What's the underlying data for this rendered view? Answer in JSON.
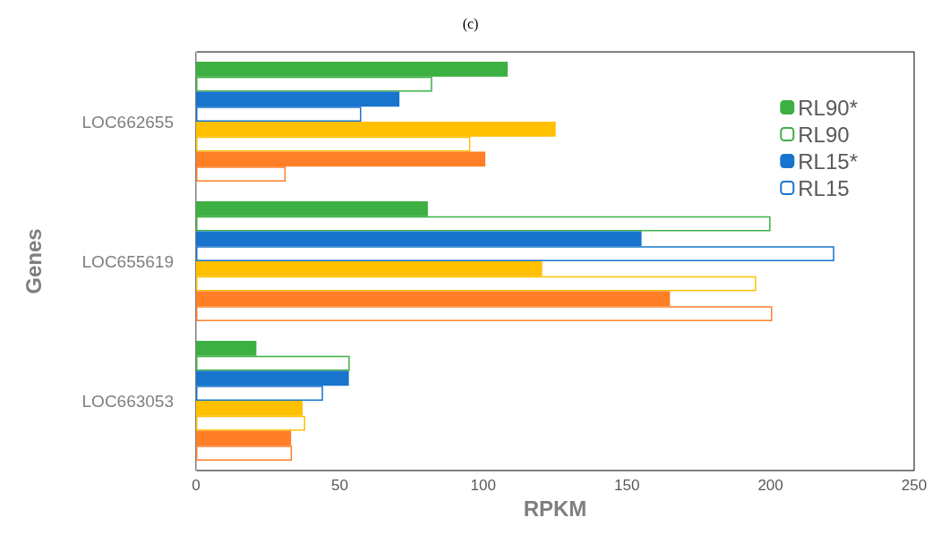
{
  "chart_data": {
    "type": "bar",
    "orientation": "horizontal",
    "title": "(c)",
    "xlabel": "RPKM",
    "ylabel": "Genes",
    "categories": [
      "LOC662655",
      "LOC655619",
      "LOC663053"
    ],
    "series": [
      {
        "name": "RL90*",
        "color": "#3cb043",
        "values": [
          108.5,
          80.7,
          21
        ]
      },
      {
        "name": "RL90",
        "color": "#3cb043",
        "line_style": "solid",
        "values": [
          82.2,
          200,
          53.5
        ]
      },
      {
        "name": "RL15*",
        "color": "#1874cd",
        "values": [
          70.8,
          155.1,
          53.2
        ]
      },
      {
        "name": "RL15",
        "color": "#1874cd",
        "line_style": "solid",
        "values": [
          57.5,
          222.2,
          44.2
        ]
      },
      {
        "color": "#ffc000",
        "values": [
          125.2,
          120.5,
          37.1
        ]
      },
      {
        "color": "#ffc000",
        "line_style": "solid",
        "values": [
          95.5,
          195,
          38
        ]
      },
      {
        "color": "#ff7f27",
        "values": [
          100.7,
          165,
          33.1
        ]
      },
      {
        "color": "#ff7f27",
        "line_style": "solid",
        "values": [
          31.2,
          200.6,
          33.4
        ]
      }
    ],
    "xlim": [
      0,
      250
    ],
    "xticks": [
      0,
      50,
      100,
      150,
      200,
      250
    ],
    "grid": false,
    "legend": "top right"
  }
}
